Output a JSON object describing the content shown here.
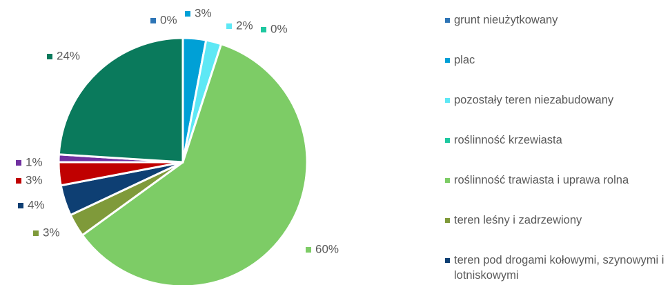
{
  "chart_data": {
    "type": "pie",
    "categories": [
      "grunt nieużytkowany",
      "plac",
      "pozostały teren niezabudowany",
      "roślinność krzewiasta",
      "roślinność trawiasta i uprawa rolna",
      "teren leśny i zadrzewiony",
      "teren pod drogami kołowymi, szynowymi i lotniskowymi",
      null,
      null,
      null
    ],
    "values": [
      0,
      3,
      2,
      0,
      60,
      3,
      4,
      3,
      1,
      24
    ],
    "value_labels": [
      "0%",
      "3%",
      "2%",
      "0%",
      "60%",
      "3%",
      "4%",
      "3%",
      "1%",
      "24%"
    ],
    "colors": [
      "#2e75b6",
      "#00a0d6",
      "#5ee8f5",
      "#1ec8a0",
      "#7dcc66",
      "#7f9a3a",
      "#0e3f73",
      "#c00000",
      "#7030a0",
      "#0a7a5c"
    ],
    "legend": "right"
  }
}
